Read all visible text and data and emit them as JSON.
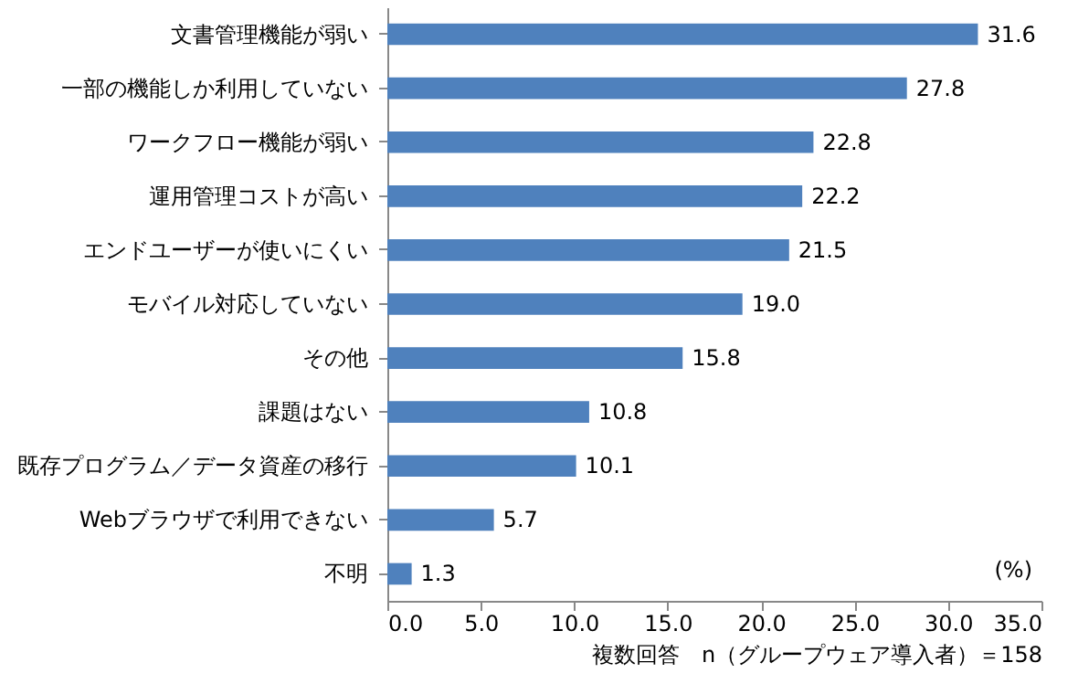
{
  "chart_data": {
    "type": "bar",
    "orientation": "horizontal",
    "xlabel": "複数回答　n（グループウェア導入者）＝158",
    "categories": [
      "文書管理機能が弱い",
      "一部の機能しか利用していない",
      "ワークフロー機能が弱い",
      "運用管理コストが高い",
      "エンドユーザーが使いにくい",
      "モバイル対応していない",
      "その他",
      "課題はない",
      "既存プログラム／データ資産の移行",
      "Webブラウザで利用できない",
      "不明"
    ],
    "values": [
      31.6,
      27.8,
      22.8,
      22.2,
      21.5,
      19.0,
      15.8,
      10.8,
      10.1,
      5.7,
      1.3
    ],
    "value_labels": [
      "31.6",
      "27.8",
      "22.8",
      "22.2",
      "21.5",
      "19.0",
      "15.8",
      "10.8",
      "10.1",
      "5.7",
      "1.3"
    ],
    "color": "#4f81bd",
    "xlim": [
      0,
      35
    ],
    "xticks": [
      {
        "value": 0,
        "label": "0.0"
      },
      {
        "value": 5,
        "label": "5.0"
      },
      {
        "value": 10,
        "label": "10.0"
      },
      {
        "value": 15,
        "label": "15.0"
      },
      {
        "value": 20,
        "label": "20.0"
      },
      {
        "value": 25,
        "label": "25.0"
      },
      {
        "value": 30,
        "label": "30.0"
      },
      {
        "value": 35,
        "label": "35.0"
      }
    ],
    "annotations": [
      "(%)"
    ]
  }
}
